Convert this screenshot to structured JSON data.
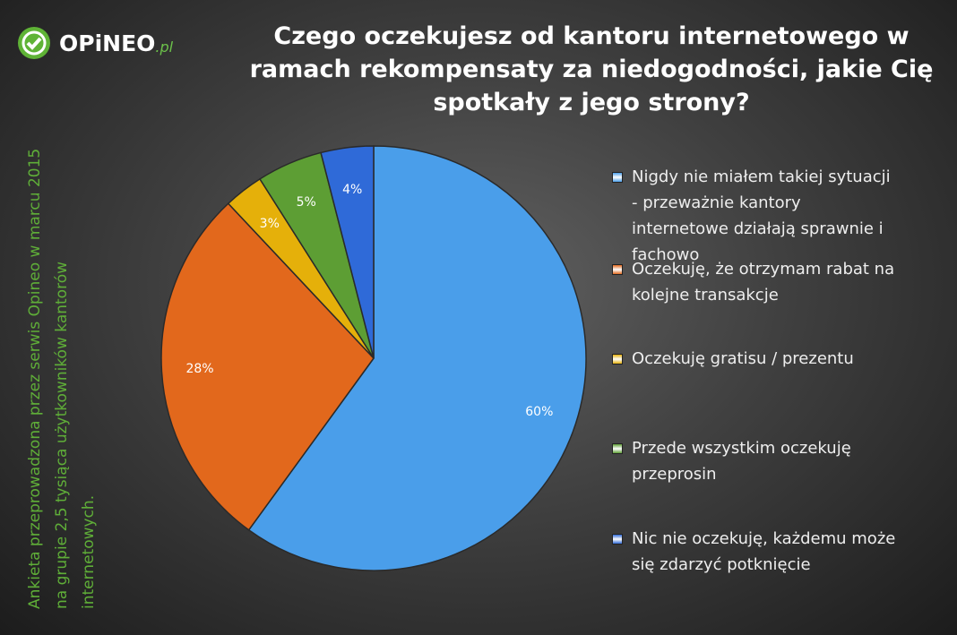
{
  "logo": {
    "name": "OPiNEO",
    "suffix": ".pl"
  },
  "side_note": [
    "Ankieta przeprowadzona przez serwis Opineo w marcu 2015",
    "na grupie 2,5 tysiąca użytkowników  kantorów",
    "internetowych."
  ],
  "chart_data": {
    "type": "pie",
    "title": "Czego oczekujesz od kantoru internetowego w ramach rekompensaty za niedogodności, jakie Cię spotkały z jego strony?",
    "categories": [
      "Nigdy nie miałem takiej sytuacji - przeważnie kantory internetowe działają sprawnie i fachowo",
      "Oczekuję, że otrzymam rabat na kolejne transakcje",
      "Oczekuję gratisu / prezentu",
      "Przede wszystkim oczekuję przeprosin",
      "Nic nie oczekuję, każdemu może się zdarzyć potknięcie"
    ],
    "values": [
      60,
      28,
      3,
      5,
      4
    ],
    "value_labels": [
      "60%",
      "28%",
      "3%",
      "5%",
      "4%"
    ],
    "colors": [
      "#4a9eea",
      "#e2681c",
      "#e5b00a",
      "#5d9e34",
      "#2f6ad8"
    ],
    "legend": "right"
  }
}
